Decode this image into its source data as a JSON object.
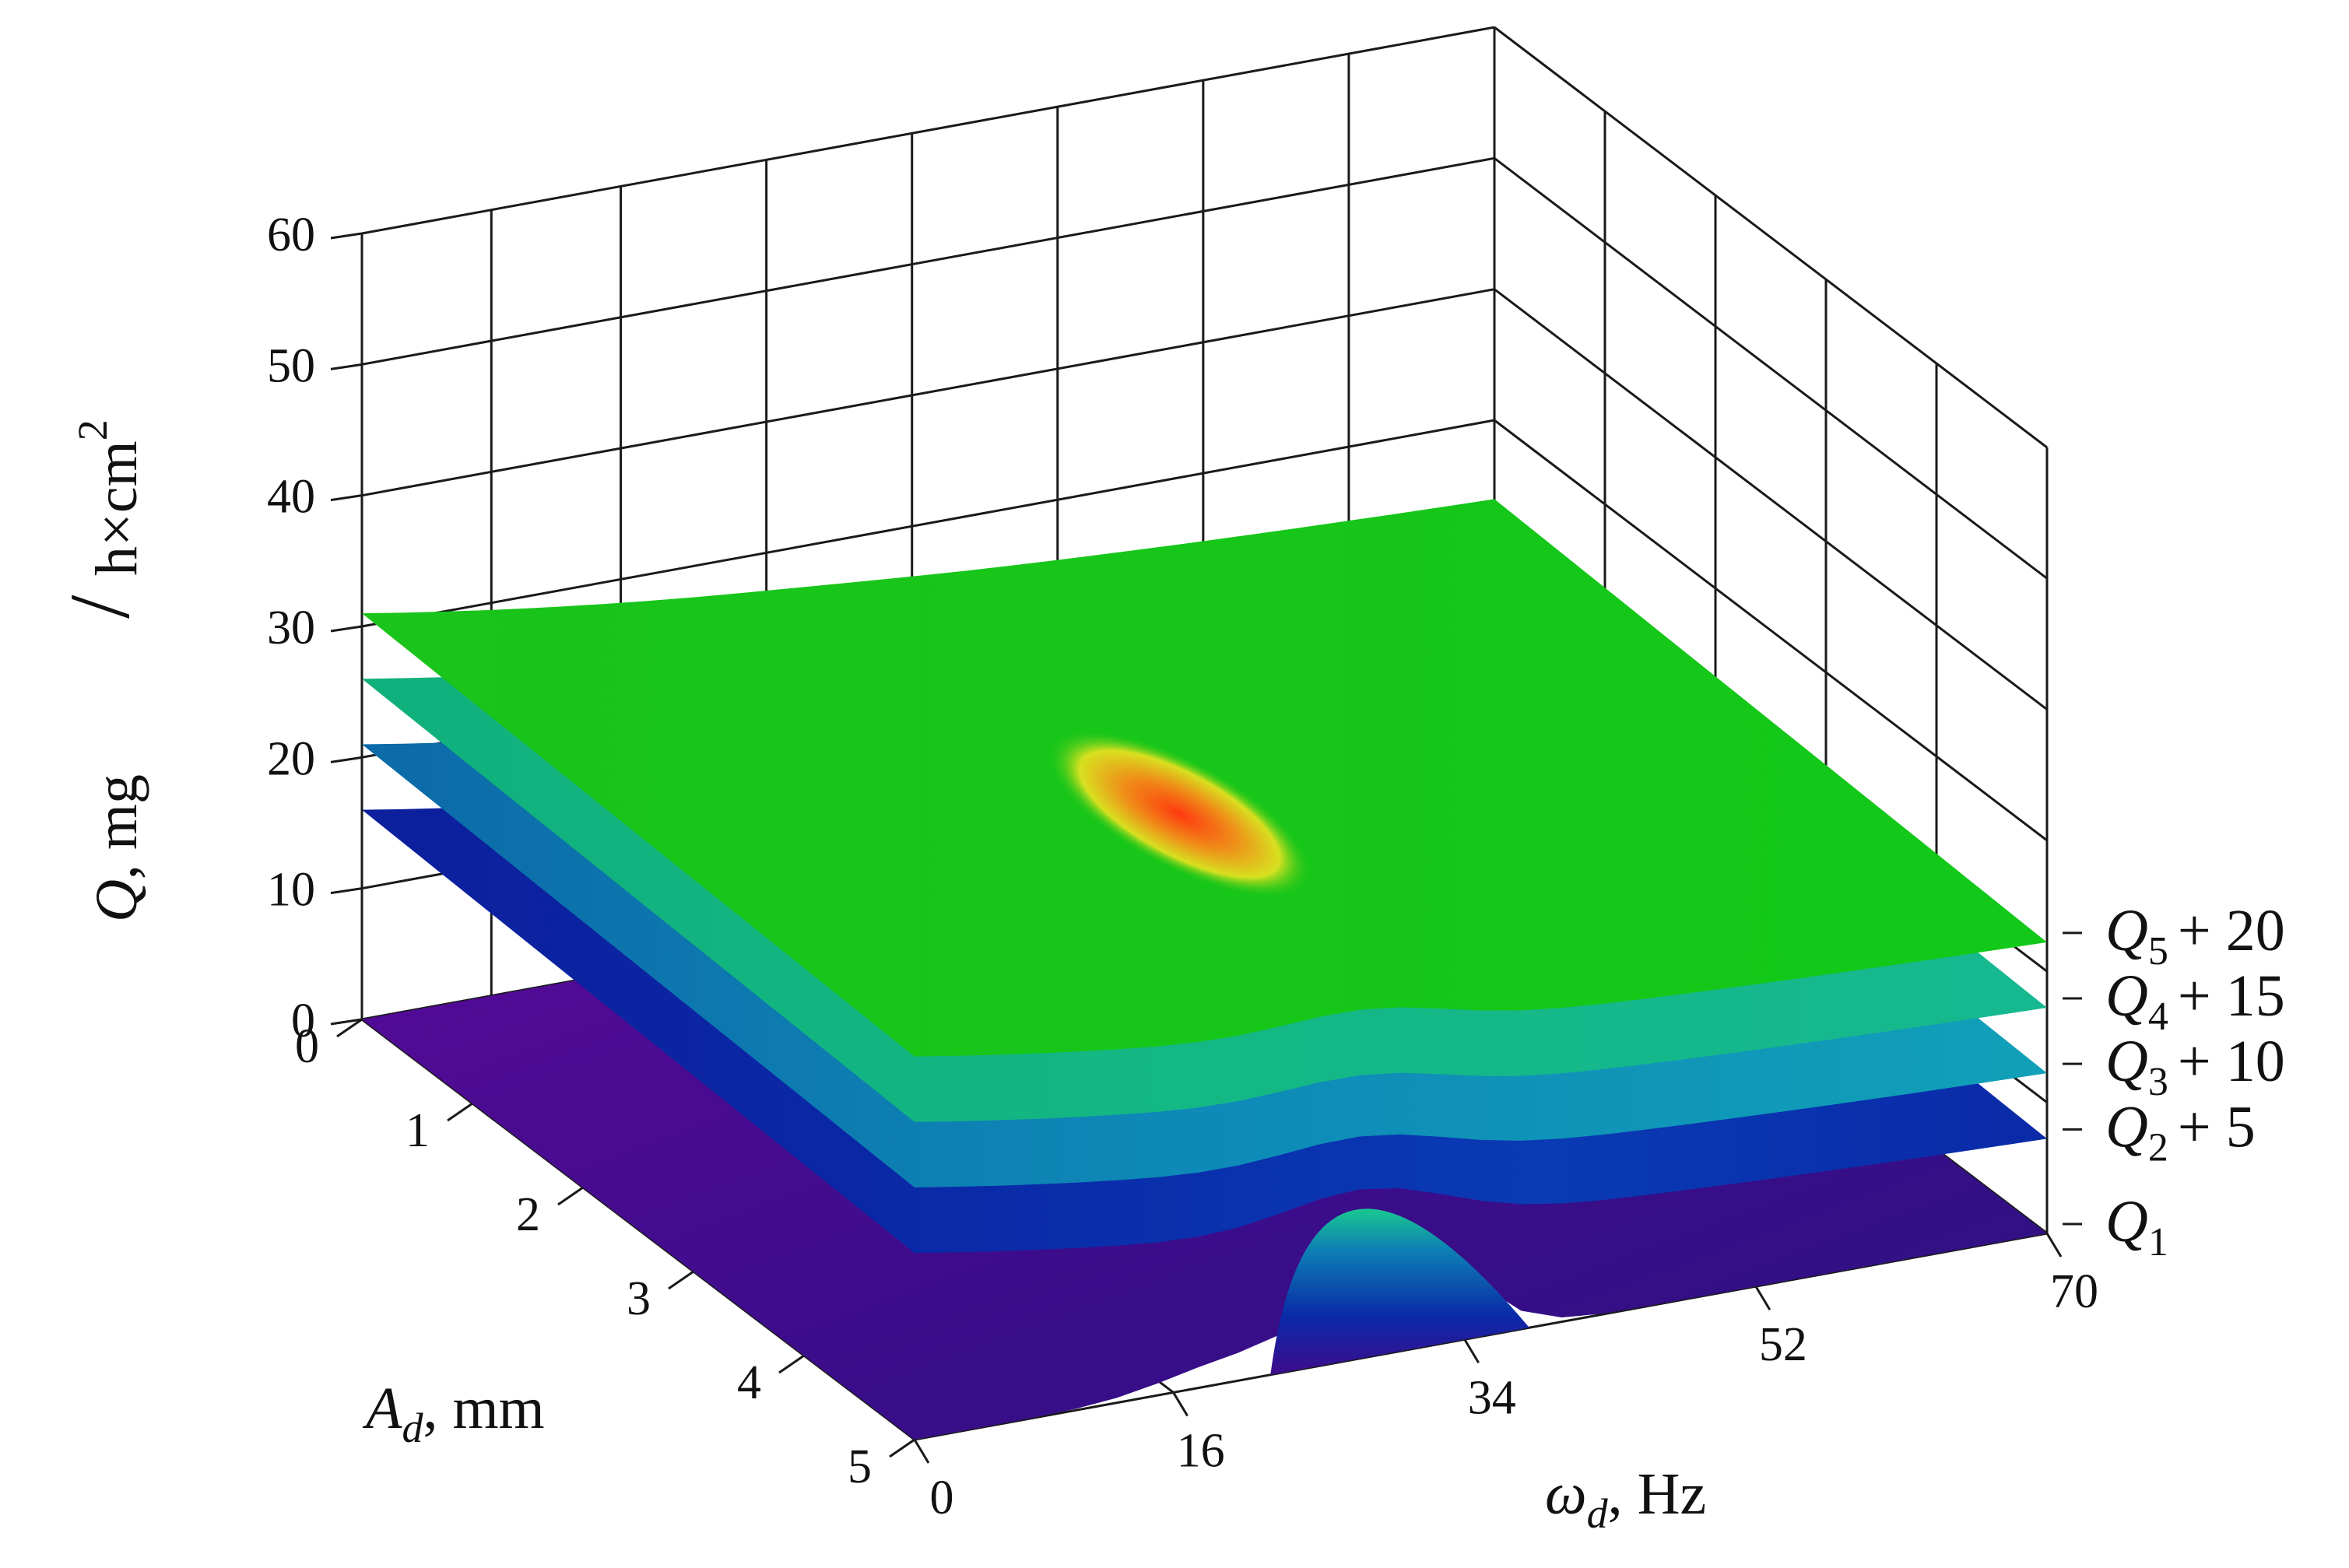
{
  "chart_data": {
    "type": "surface",
    "title": "",
    "x_axis": {
      "label_main": "ω",
      "label_sub": "d",
      "label_unit": ", Hz",
      "range": [
        0,
        70
      ],
      "ticks": [
        "0",
        "16",
        "34",
        "52",
        "70"
      ]
    },
    "y_axis": {
      "label_main": "A",
      "label_sub": "d",
      "label_unit": ", mm",
      "range": [
        0,
        5
      ],
      "ticks": [
        "0",
        "1",
        "2",
        "3",
        "4",
        "5"
      ]
    },
    "z_axis": {
      "label_main": "Q",
      "label_unit": ", mg",
      "label_denominator": "h×cm",
      "label_exponent": "2",
      "range": [
        0,
        60
      ],
      "ticks": [
        "0",
        "10",
        "20",
        "30",
        "40",
        "50",
        "60"
      ]
    },
    "grid": true,
    "series": [
      {
        "name_main": "Q",
        "name_sub": "1",
        "name_suffix": "",
        "offset": 0,
        "color": "#4b0a8c"
      },
      {
        "name_main": "Q",
        "name_sub": "2",
        "name_suffix": "+ 5",
        "offset": 5,
        "color": "#0a2aa8"
      },
      {
        "name_main": "Q",
        "name_sub": "3",
        "name_suffix": "+ 10",
        "offset": 10,
        "color": "#0e7fb4"
      },
      {
        "name_main": "Q",
        "name_sub": "4",
        "name_suffix": "+ 15",
        "offset": 15,
        "color": "#13b87c"
      },
      {
        "name_main": "Q",
        "name_sub": "5",
        "name_suffix": "+ 20",
        "offset": 20,
        "color": "#19c81a"
      }
    ]
  }
}
